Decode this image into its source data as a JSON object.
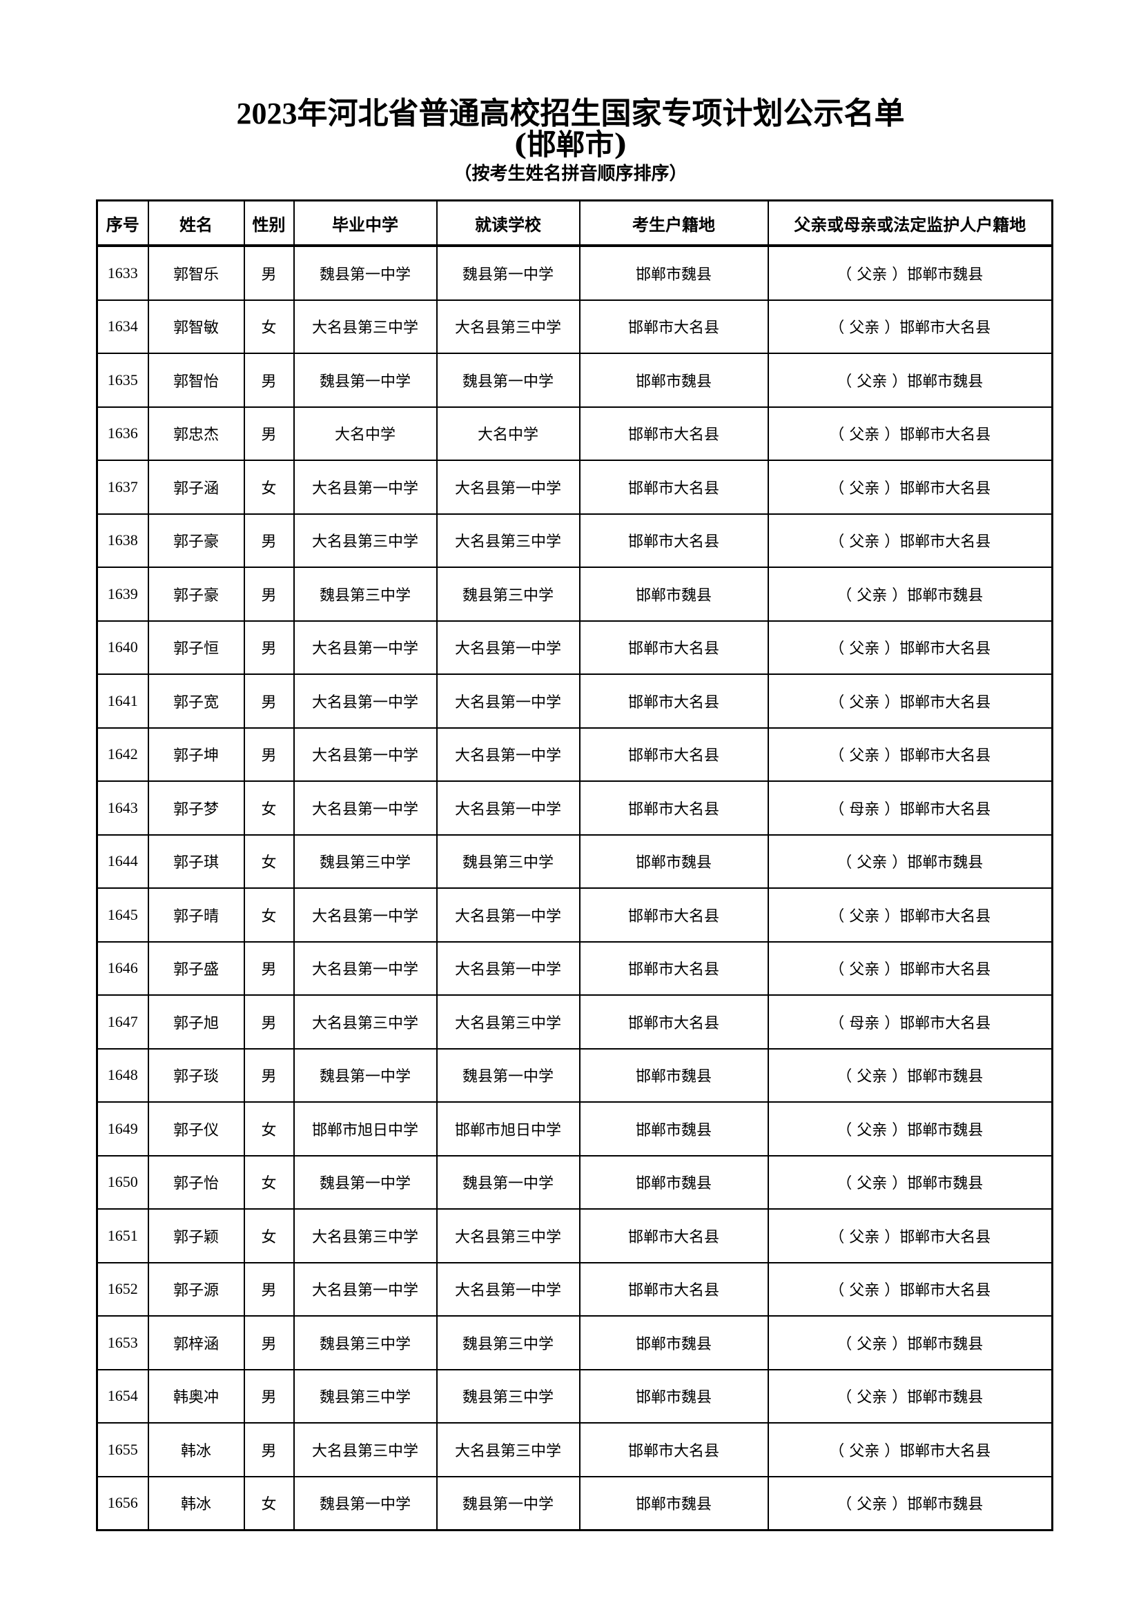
{
  "title": "2023年河北省普通高校招生国家专项计划公示名单",
  "subtitle": "(邯郸市)",
  "note": "（按考生姓名拼音顺序排序）",
  "table": {
    "headers": [
      "序号",
      "姓名",
      "性别",
      "毕业中学",
      "就读学校",
      "考生户籍地",
      "父亲或母亲或法定监护人户籍地"
    ],
    "rows": [
      [
        "1633",
        "郭智乐",
        "男",
        "魏县第一中学",
        "魏县第一中学",
        "邯郸市魏县",
        "（ 父亲 ）邯郸市魏县"
      ],
      [
        "1634",
        "郭智敏",
        "女",
        "大名县第三中学",
        "大名县第三中学",
        "邯郸市大名县",
        "（ 父亲 ）邯郸市大名县"
      ],
      [
        "1635",
        "郭智怡",
        "男",
        "魏县第一中学",
        "魏县第一中学",
        "邯郸市魏县",
        "（ 父亲 ）邯郸市魏县"
      ],
      [
        "1636",
        "郭忠杰",
        "男",
        "大名中学",
        "大名中学",
        "邯郸市大名县",
        "（ 父亲 ）邯郸市大名县"
      ],
      [
        "1637",
        "郭子涵",
        "女",
        "大名县第一中学",
        "大名县第一中学",
        "邯郸市大名县",
        "（ 父亲 ）邯郸市大名县"
      ],
      [
        "1638",
        "郭子豪",
        "男",
        "大名县第三中学",
        "大名县第三中学",
        "邯郸市大名县",
        "（ 父亲 ）邯郸市大名县"
      ],
      [
        "1639",
        "郭子豪",
        "男",
        "魏县第三中学",
        "魏县第三中学",
        "邯郸市魏县",
        "（ 父亲 ）邯郸市魏县"
      ],
      [
        "1640",
        "郭子恒",
        "男",
        "大名县第一中学",
        "大名县第一中学",
        "邯郸市大名县",
        "（ 父亲 ）邯郸市大名县"
      ],
      [
        "1641",
        "郭子宽",
        "男",
        "大名县第一中学",
        "大名县第一中学",
        "邯郸市大名县",
        "（ 父亲 ）邯郸市大名县"
      ],
      [
        "1642",
        "郭子坤",
        "男",
        "大名县第一中学",
        "大名县第一中学",
        "邯郸市大名县",
        "（ 父亲 ）邯郸市大名县"
      ],
      [
        "1643",
        "郭子梦",
        "女",
        "大名县第一中学",
        "大名县第一中学",
        "邯郸市大名县",
        "（ 母亲 ）邯郸市大名县"
      ],
      [
        "1644",
        "郭子琪",
        "女",
        "魏县第三中学",
        "魏县第三中学",
        "邯郸市魏县",
        "（ 父亲 ）邯郸市魏县"
      ],
      [
        "1645",
        "郭子晴",
        "女",
        "大名县第一中学",
        "大名县第一中学",
        "邯郸市大名县",
        "（ 父亲 ）邯郸市大名县"
      ],
      [
        "1646",
        "郭子盛",
        "男",
        "大名县第一中学",
        "大名县第一中学",
        "邯郸市大名县",
        "（ 父亲 ）邯郸市大名县"
      ],
      [
        "1647",
        "郭子旭",
        "男",
        "大名县第三中学",
        "大名县第三中学",
        "邯郸市大名县",
        "（ 母亲 ）邯郸市大名县"
      ],
      [
        "1648",
        "郭子琰",
        "男",
        "魏县第一中学",
        "魏县第一中学",
        "邯郸市魏县",
        "（ 父亲 ）邯郸市魏县"
      ],
      [
        "1649",
        "郭子仪",
        "女",
        "邯郸市旭日中学",
        "邯郸市旭日中学",
        "邯郸市魏县",
        "（ 父亲 ）邯郸市魏县"
      ],
      [
        "1650",
        "郭子怡",
        "女",
        "魏县第一中学",
        "魏县第一中学",
        "邯郸市魏县",
        "（ 父亲 ）邯郸市魏县"
      ],
      [
        "1651",
        "郭子颖",
        "女",
        "大名县第三中学",
        "大名县第三中学",
        "邯郸市大名县",
        "（ 父亲 ）邯郸市大名县"
      ],
      [
        "1652",
        "郭子源",
        "男",
        "大名县第一中学",
        "大名县第一中学",
        "邯郸市大名县",
        "（ 父亲 ）邯郸市大名县"
      ],
      [
        "1653",
        "郭梓涵",
        "男",
        "魏县第三中学",
        "魏县第三中学",
        "邯郸市魏县",
        "（ 父亲 ）邯郸市魏县"
      ],
      [
        "1654",
        "韩奥冲",
        "男",
        "魏县第三中学",
        "魏县第三中学",
        "邯郸市魏县",
        "（ 父亲 ）邯郸市魏县"
      ],
      [
        "1655",
        "韩冰",
        "男",
        "大名县第三中学",
        "大名县第三中学",
        "邯郸市大名县",
        "（ 父亲 ）邯郸市大名县"
      ],
      [
        "1656",
        "韩冰",
        "女",
        "魏县第一中学",
        "魏县第一中学",
        "邯郸市魏县",
        "（ 父亲 ）邯郸市魏县"
      ]
    ]
  }
}
